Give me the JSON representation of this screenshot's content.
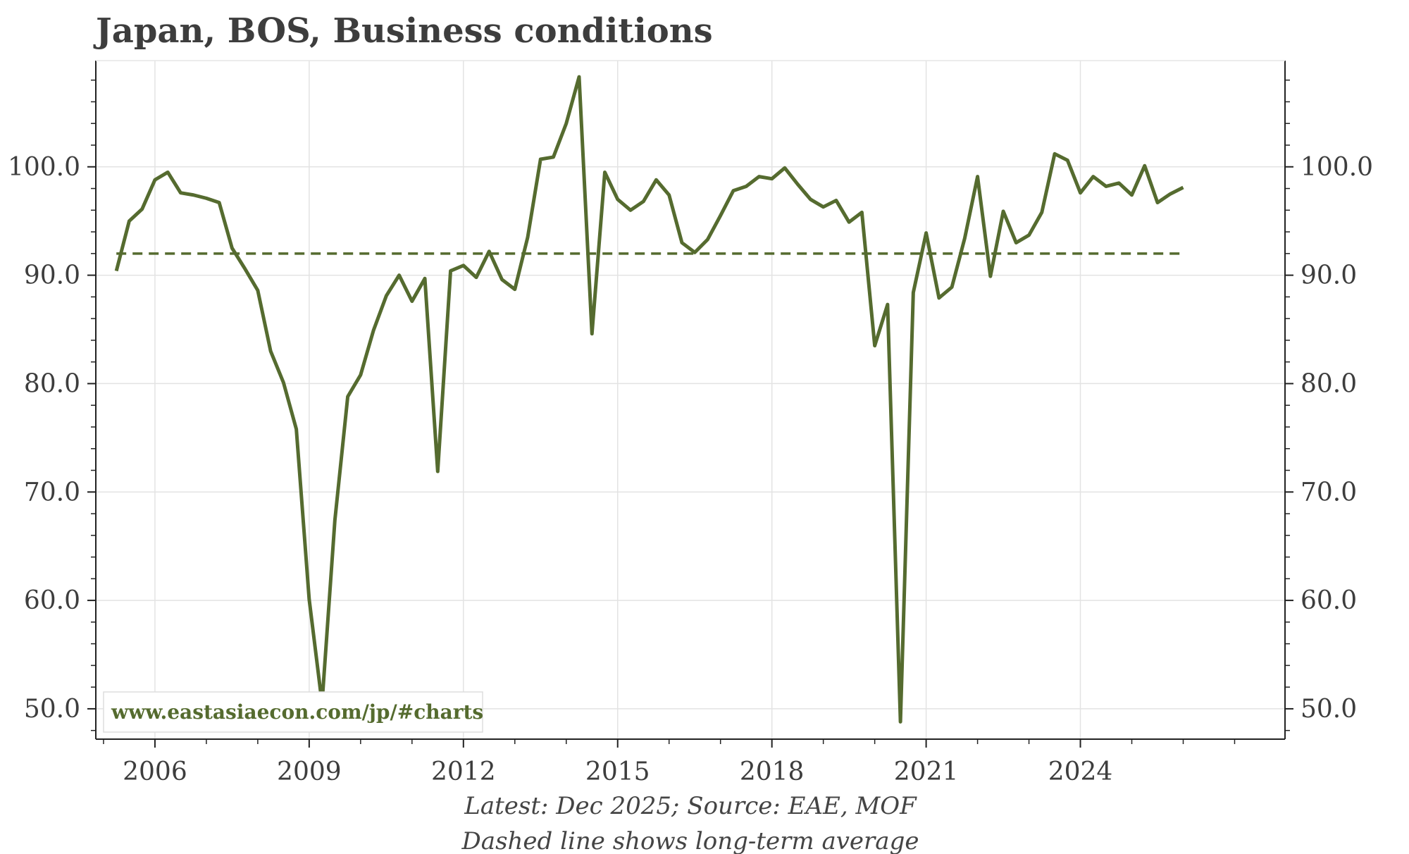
{
  "chart_data": {
    "type": "line",
    "title": "Japan, BOS, Business conditions",
    "xlabel": "",
    "ylabel": "",
    "x_ticks": [
      "2006",
      "2009",
      "2012",
      "2015",
      "2018",
      "2021",
      "2024"
    ],
    "y_ticks": [
      "50.0",
      "60.0",
      "70.0",
      "80.0",
      "90.0",
      "100.0"
    ],
    "xlim": [
      2004.85,
      2027.98
    ],
    "ylim": [
      47.2,
      109.8
    ],
    "grid": true,
    "series": [
      {
        "name": "Business conditions",
        "color": "#556b2f",
        "style": "solid",
        "x": [
          2005.25,
          2005.5,
          2005.75,
          2006.0,
          2006.25,
          2006.5,
          2006.75,
          2007.0,
          2007.25,
          2007.5,
          2007.75,
          2008.0,
          2008.25,
          2008.5,
          2008.75,
          2009.0,
          2009.25,
          2009.5,
          2009.75,
          2010.0,
          2010.25,
          2010.5,
          2010.75,
          2011.0,
          2011.25,
          2011.5,
          2011.75,
          2012.0,
          2012.25,
          2012.5,
          2012.75,
          2013.0,
          2013.25,
          2013.5,
          2013.75,
          2014.0,
          2014.25,
          2014.5,
          2014.75,
          2015.0,
          2015.25,
          2015.5,
          2015.75,
          2016.0,
          2016.25,
          2016.5,
          2016.75,
          2017.0,
          2017.25,
          2017.5,
          2017.75,
          2018.0,
          2018.25,
          2018.5,
          2018.75,
          2019.0,
          2019.25,
          2019.5,
          2019.75,
          2020.0,
          2020.25,
          2020.5,
          2020.75,
          2021.0,
          2021.25,
          2021.5,
          2021.75,
          2022.0,
          2022.25,
          2022.5,
          2022.75,
          2023.0,
          2023.25,
          2023.5,
          2023.75,
          2024.0,
          2024.25,
          2024.5,
          2024.75,
          2025.0,
          2025.25,
          2025.5,
          2025.75,
          2026.0
        ],
        "values": [
          90.4,
          95.0,
          96.1,
          98.8,
          99.5,
          97.6,
          97.4,
          97.1,
          96.7,
          92.5,
          90.6,
          88.6,
          83.0,
          80.1,
          75.8,
          60.1,
          50.5,
          67.4,
          78.8,
          80.8,
          84.9,
          88.1,
          90.0,
          87.6,
          89.7,
          71.9,
          90.4,
          90.9,
          89.8,
          92.2,
          89.6,
          88.7,
          93.5,
          100.7,
          100.9,
          104.0,
          108.3,
          84.6,
          99.5,
          97.0,
          96.0,
          96.8,
          98.8,
          97.4,
          93.0,
          92.1,
          93.3,
          95.5,
          97.8,
          98.2,
          99.1,
          98.9,
          99.9,
          98.4,
          97.0,
          96.3,
          96.9,
          94.9,
          95.8,
          83.5,
          87.3,
          48.8,
          88.4,
          93.9,
          87.9,
          88.9,
          93.4,
          99.1,
          89.9,
          95.9,
          93.0,
          93.7,
          95.8,
          101.2,
          100.6,
          97.6,
          99.1,
          98.2,
          98.5,
          97.4,
          100.1,
          96.7,
          97.5,
          98.1
        ]
      },
      {
        "name": "Long-term average",
        "color": "#556b2f",
        "style": "dashed",
        "x": [
          2005.25,
          2026.0
        ],
        "values": [
          92.0,
          92.0
        ]
      }
    ]
  },
  "watermark": "www.eastasiaecon.com/jp/#charts",
  "footer": {
    "line1": "Latest: Dec 2025; Source: EAE, MOF",
    "line2": "Dashed line shows long-term average"
  }
}
